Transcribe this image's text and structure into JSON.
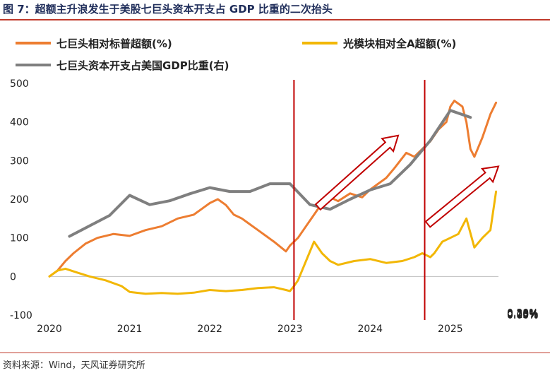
{
  "figure": {
    "title": "图 7：超额主升浪发生于美股七巨头资本开支占 GDP 比重的二次抬头",
    "source": "资料来源：Wind，天风证券研究所"
  },
  "chart_data": {
    "type": "line",
    "legend": [
      {
        "name": "七巨头相对标普超额(%)",
        "color": "#ED7D31"
      },
      {
        "name": "光模块相对全A超额(%)",
        "color": "#F2B705"
      },
      {
        "name": "七巨头资本开支占美国GDP比重(右)",
        "color": "#7F7F7F"
      }
    ],
    "x_ticks": [
      "2020",
      "2021",
      "2022",
      "2023",
      "2024",
      "2025"
    ],
    "xlim": [
      2020.0,
      2025.6
    ],
    "y_left": {
      "ticks": [
        "500",
        "400",
        "300",
        "200",
        "100",
        "0",
        "-100"
      ],
      "ylim": [
        -100,
        500
      ]
    },
    "y_right": {
      "ticks": [
        "0.30%",
        "0.25%",
        "0.20%",
        "0.15%",
        "0.10%",
        "0.05%",
        "0.00%"
      ],
      "ylim": [
        0.0,
        0.3
      ]
    },
    "series": [
      {
        "name": "七巨头相对标普超额(%)",
        "axis": "left",
        "color": "#ED7D31",
        "x": [
          2020.0,
          2020.1,
          2020.2,
          2020.3,
          2020.45,
          2020.6,
          2020.8,
          2021.0,
          2021.2,
          2021.4,
          2021.6,
          2021.8,
          2021.9,
          2022.0,
          2022.1,
          2022.2,
          2022.3,
          2022.4,
          2022.5,
          2022.6,
          2022.7,
          2022.8,
          2022.95,
          2023.0,
          2023.1,
          2023.2,
          2023.3,
          2023.4,
          2023.5,
          2023.6,
          2023.75,
          2023.9,
          2024.0,
          2024.1,
          2024.2,
          2024.3,
          2024.45,
          2024.55,
          2024.65,
          2024.75,
          2024.85,
          2024.95,
          2025.0,
          2025.05,
          2025.15,
          2025.2,
          2025.25,
          2025.3,
          2025.4,
          2025.5,
          2025.57
        ],
        "y": [
          0,
          15,
          40,
          60,
          85,
          100,
          110,
          105,
          120,
          130,
          150,
          160,
          175,
          190,
          200,
          185,
          160,
          150,
          135,
          120,
          105,
          90,
          65,
          80,
          100,
          130,
          160,
          190,
          205,
          195,
          215,
          205,
          225,
          240,
          255,
          280,
          320,
          310,
          330,
          350,
          380,
          400,
          440,
          455,
          440,
          400,
          330,
          310,
          360,
          420,
          450
        ]
      },
      {
        "name": "光模块相对全A超额(%)",
        "axis": "left",
        "color": "#F2B705",
        "x": [
          2020.0,
          2020.1,
          2020.2,
          2020.35,
          2020.5,
          2020.7,
          2020.9,
          2021.0,
          2021.2,
          2021.4,
          2021.6,
          2021.8,
          2022.0,
          2022.2,
          2022.4,
          2022.6,
          2022.8,
          2022.95,
          2023.0,
          2023.05,
          2023.1,
          2023.2,
          2023.3,
          2023.4,
          2023.5,
          2023.6,
          2023.8,
          2024.0,
          2024.2,
          2024.4,
          2024.55,
          2024.65,
          2024.75,
          2024.8,
          2024.9,
          2025.0,
          2025.1,
          2025.2,
          2025.3,
          2025.4,
          2025.5,
          2025.57
        ],
        "y": [
          0,
          15,
          20,
          10,
          0,
          -10,
          -25,
          -40,
          -45,
          -43,
          -45,
          -42,
          -35,
          -38,
          -35,
          -30,
          -28,
          -35,
          -38,
          -25,
          -10,
          40,
          90,
          60,
          40,
          30,
          40,
          45,
          35,
          40,
          50,
          60,
          50,
          60,
          90,
          100,
          110,
          150,
          75,
          100,
          120,
          220
        ]
      },
      {
        "name": "七巨头资本开支占美国GDP比重(右)",
        "axis": "right",
        "color": "#7F7F7F",
        "x": [
          2020.25,
          2020.75,
          2021.0,
          2021.25,
          2021.5,
          2021.75,
          2022.0,
          2022.25,
          2022.5,
          2022.75,
          2023.0,
          2023.25,
          2023.5,
          2023.75,
          2024.0,
          2024.25,
          2024.5,
          2024.75,
          2025.0,
          2025.25
        ],
        "y": [
          0.102,
          0.129,
          0.155,
          0.143,
          0.148,
          0.157,
          0.165,
          0.16,
          0.16,
          0.17,
          0.17,
          0.143,
          0.137,
          0.15,
          0.162,
          0.17,
          0.195,
          0.226,
          0.265,
          0.256
        ]
      }
    ],
    "annotations": [
      {
        "type": "vline",
        "x": 2023.05,
        "color": "#C00000"
      },
      {
        "type": "vline",
        "x": 2024.68,
        "color": "#C00000"
      },
      {
        "type": "arrow",
        "from": [
          2023.35,
          180
        ],
        "to": [
          2024.35,
          365
        ],
        "axis": "left",
        "color": "#C00000"
      },
      {
        "type": "arrow",
        "from": [
          2024.72,
          135
        ],
        "to": [
          2025.6,
          285
        ],
        "axis": "left",
        "color": "#C00000"
      }
    ],
    "grid": false,
    "legend_position": "top"
  }
}
